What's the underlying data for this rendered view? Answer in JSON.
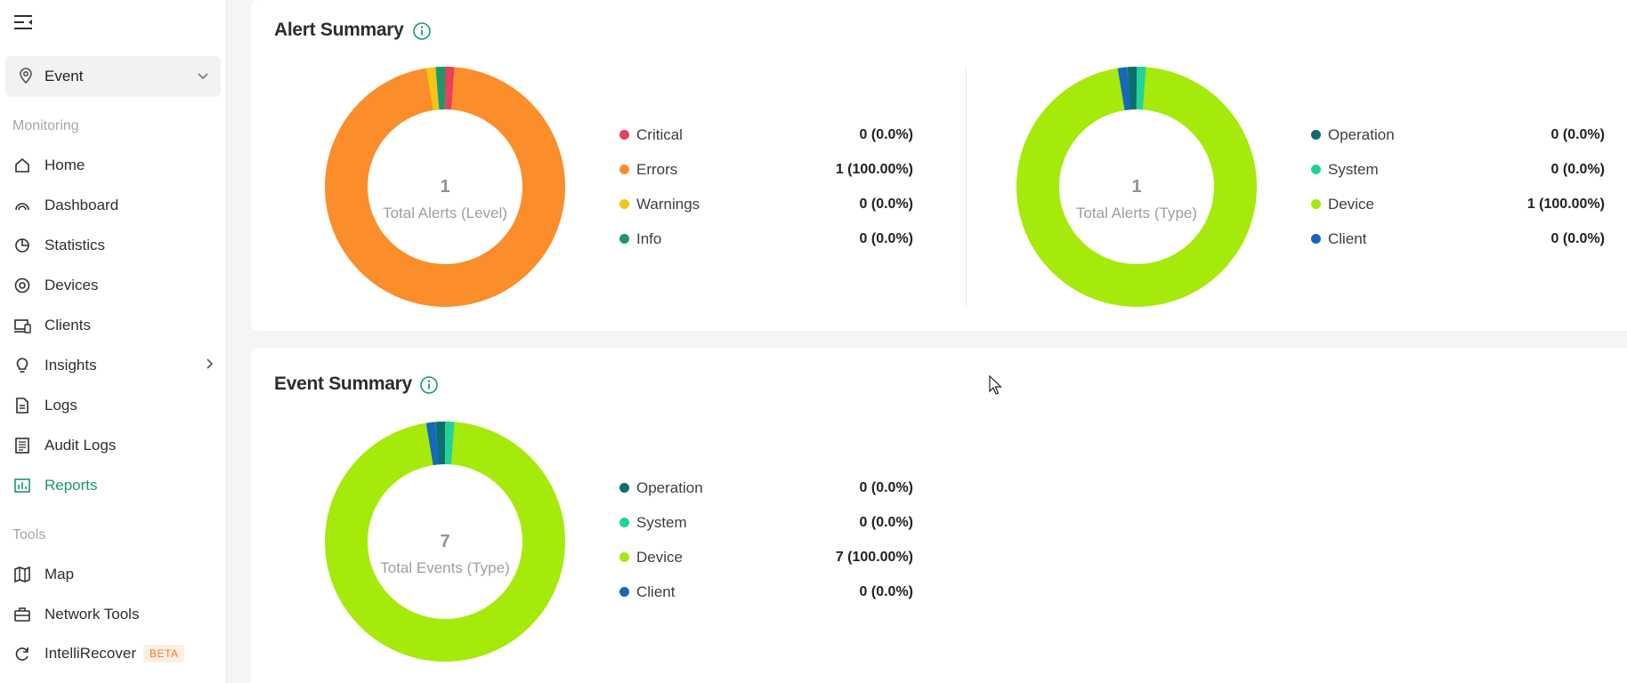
{
  "sidebar": {
    "site_selector": {
      "label": "Event",
      "icon": "location-pin-icon"
    },
    "sections": {
      "monitoring": "Monitoring",
      "tools": "Tools"
    },
    "items": [
      {
        "label": "Home",
        "icon": "home-icon"
      },
      {
        "label": "Dashboard",
        "icon": "dashboard-icon"
      },
      {
        "label": "Statistics",
        "icon": "pie-chart-icon"
      },
      {
        "label": "Devices",
        "icon": "device-icon"
      },
      {
        "label": "Clients",
        "icon": "clients-icon"
      },
      {
        "label": "Insights",
        "icon": "lightbulb-icon"
      },
      {
        "label": "Logs",
        "icon": "document-icon"
      },
      {
        "label": "Audit Logs",
        "icon": "list-document-icon"
      },
      {
        "label": "Reports",
        "icon": "bar-chart-icon",
        "active": true
      },
      {
        "label": "Map",
        "icon": "map-icon"
      },
      {
        "label": "Network Tools",
        "icon": "toolbox-icon"
      },
      {
        "label": "IntelliRecover",
        "icon": "refresh-icon",
        "badge": "BETA"
      }
    ]
  },
  "alert_summary": {
    "title": "Alert Summary",
    "level": {
      "total": "1",
      "center_label": "Total Alerts (Level)",
      "legend": [
        {
          "name": "Critical",
          "value": "0 (0.0%)",
          "color": "#e8405d"
        },
        {
          "name": "Errors",
          "value": "1 (100.00%)",
          "color": "#fb8d2a"
        },
        {
          "name": "Warnings",
          "value": "0 (0.0%)",
          "color": "#f5c418"
        },
        {
          "name": "Info",
          "value": "0 (0.0%)",
          "color": "#1a9a6c"
        }
      ]
    },
    "type": {
      "total": "1",
      "center_label": "Total Alerts (Type)",
      "legend": [
        {
          "name": "Operation",
          "value": "0 (0.0%)",
          "color": "#0e6e6b"
        },
        {
          "name": "System",
          "value": "0 (0.0%)",
          "color": "#1fd39b"
        },
        {
          "name": "Device",
          "value": "1 (100.00%)",
          "color": "#a5ea0a"
        },
        {
          "name": "Client",
          "value": "0 (0.0%)",
          "color": "#1567c0"
        }
      ]
    }
  },
  "event_summary": {
    "title": "Event Summary",
    "type": {
      "total": "7",
      "center_label": "Total Events (Type)",
      "legend": [
        {
          "name": "Operation",
          "value": "0 (0.0%)",
          "color": "#0e6e6b"
        },
        {
          "name": "System",
          "value": "0 (0.0%)",
          "color": "#1fd39b"
        },
        {
          "name": "Device",
          "value": "7 (100.00%)",
          "color": "#a5ea0a"
        },
        {
          "name": "Client",
          "value": "0 (0.0%)",
          "color": "#1567c0"
        }
      ]
    }
  },
  "chart_data": [
    {
      "type": "pie",
      "title": "Total Alerts (Level)",
      "categories": [
        "Critical",
        "Errors",
        "Warnings",
        "Info"
      ],
      "values": [
        0,
        1,
        0,
        0
      ]
    },
    {
      "type": "pie",
      "title": "Total Alerts (Type)",
      "categories": [
        "Operation",
        "System",
        "Device",
        "Client"
      ],
      "values": [
        0,
        0,
        1,
        0
      ]
    },
    {
      "type": "pie",
      "title": "Total Events (Type)",
      "categories": [
        "Operation",
        "System",
        "Device",
        "Client"
      ],
      "values": [
        0,
        0,
        7,
        0
      ]
    }
  ]
}
